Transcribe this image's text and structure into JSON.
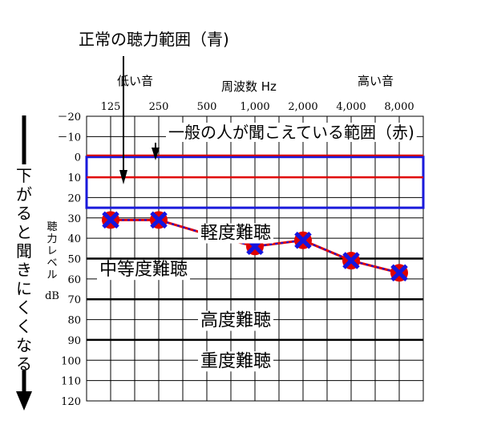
{
  "chart_data": {
    "type": "line",
    "x_axis_title": "周波数 Hz",
    "low_label": "低い音",
    "high_label": "高い音",
    "y_axis_title_lines": [
      "聴",
      "力",
      "レ",
      "ベ",
      "ル"
    ],
    "y_axis_unit": "dB",
    "x_tick_labels": [
      "125",
      "250",
      "500",
      "1,000",
      "2,000",
      "4,000",
      "8,000"
    ],
    "x_values_hz": [
      125,
      250,
      500,
      1000,
      2000,
      4000,
      8000
    ],
    "y_ticks": [
      -20,
      -10,
      0,
      10,
      20,
      30,
      40,
      50,
      60,
      70,
      80,
      90,
      100,
      110,
      120
    ],
    "y_tick_labels": [
      "－20",
      "－10",
      "0",
      "10",
      "20",
      "30",
      "40",
      "50",
      "60",
      "70",
      "80",
      "90",
      "100",
      "110",
      "120"
    ],
    "ylim": [
      -20,
      120
    ],
    "y_inverted": true,
    "normal_range_box": {
      "ymin": 0,
      "ymax": 25,
      "color": "#1a1adb"
    },
    "normal_reference_line": {
      "y": 10,
      "color": "#e00000"
    },
    "series": [
      {
        "color": "#e00000",
        "marker_color": "#1515e0",
        "points": [
          {
            "x": 125,
            "y": 31
          },
          {
            "x": 250,
            "y": 31
          },
          {
            "x": 500,
            "y": 38
          },
          {
            "x": 1000,
            "y": 44
          },
          {
            "x": 2000,
            "y": 41
          },
          {
            "x": 4000,
            "y": 51
          },
          {
            "x": 8000,
            "y": 57
          }
        ]
      }
    ],
    "zone_lines": [
      50,
      70,
      90
    ],
    "zone_labels": [
      {
        "text": "軽度難聴",
        "y": 37
      },
      {
        "text": "中等度難聴",
        "y": 55
      },
      {
        "text": "高度難聴",
        "y": 80
      },
      {
        "text": "重度難聴",
        "y": 100
      }
    ]
  },
  "annotations": {
    "normal_range_label": "正常の聴力範囲（青)",
    "general_range_label": "一般の人が聞こえている範囲（赤)",
    "down_label": "下がると聞きにくくなる"
  },
  "colors": {
    "blue": "#1a1adb",
    "red": "#e00000",
    "grid": "#000000"
  }
}
